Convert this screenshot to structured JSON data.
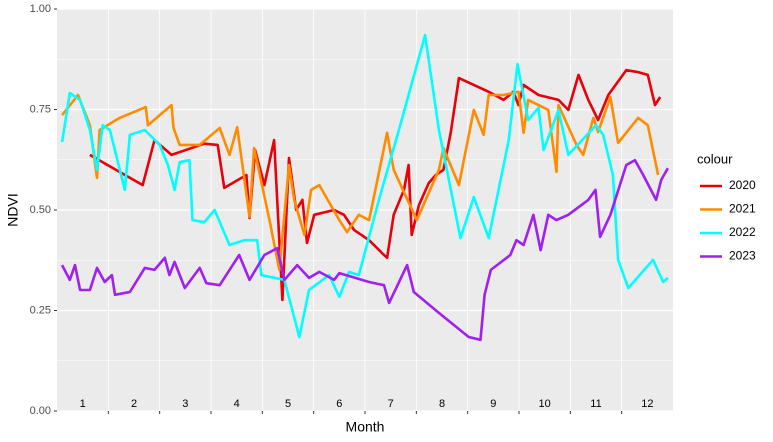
{
  "chart_data": {
    "type": "line",
    "x_label": "Month",
    "y_label": "NDVI",
    "xlim": [
      0,
      12
    ],
    "xticks": [
      1,
      2,
      3,
      4,
      5,
      6,
      7,
      8,
      9,
      10,
      11
    ],
    "ylim": [
      0,
      1
    ],
    "yticks": [
      {
        "value": 0,
        "label": "0.00"
      },
      {
        "value": 0.25,
        "label": "0.25"
      },
      {
        "value": 0.5,
        "label": "0.50"
      },
      {
        "value": 0.75,
        "label": "0.75"
      },
      {
        "value": 1,
        "label": "1.00"
      }
    ],
    "grid": true,
    "annotations": [
      {
        "x": 0.5,
        "text": "1"
      },
      {
        "x": 1.5,
        "text": "2"
      },
      {
        "x": 2.5,
        "text": "3"
      },
      {
        "x": 3.5,
        "text": "4"
      },
      {
        "x": 4.5,
        "text": "5"
      },
      {
        "x": 5.5,
        "text": "6"
      },
      {
        "x": 6.5,
        "text": "7"
      },
      {
        "x": 7.5,
        "text": "8"
      },
      {
        "x": 8.5,
        "text": "9"
      },
      {
        "x": 9.5,
        "text": "10"
      },
      {
        "x": 10.5,
        "text": "11"
      },
      {
        "x": 11.5,
        "text": "12"
      }
    ],
    "legend_title": "colour",
    "legend_position": "right",
    "series": [
      {
        "name": "2020",
        "color": "#e8000b",
        "x": [
          0.64,
          1.67,
          1.9,
          2.23,
          2.87,
          3.13,
          3.26,
          3.69,
          3.75,
          3.86,
          4.04,
          4.23,
          4.39,
          4.52,
          4.66,
          4.78,
          4.87,
          5.01,
          5.4,
          5.59,
          5.79,
          6.08,
          6.37,
          6.43,
          6.56,
          6.76,
          6.85,
          6.91,
          7.05,
          7.24,
          7.38,
          7.53,
          7.67,
          7.83,
          8.41,
          8.7,
          8.89,
          8.99,
          9.09,
          9.38,
          9.77,
          9.96,
          10.16,
          10.35,
          10.54,
          10.74,
          11.09,
          11.32,
          11.51,
          11.65,
          11.75
        ],
        "values": [
          0.637,
          0.562,
          0.674,
          0.637,
          0.665,
          0.662,
          0.555,
          0.587,
          0.48,
          0.649,
          0.562,
          0.674,
          0.276,
          0.629,
          0.5,
          0.525,
          0.418,
          0.488,
          0.5,
          0.488,
          0.45,
          0.425,
          0.388,
          0.381,
          0.488,
          0.55,
          0.612,
          0.438,
          0.512,
          0.567,
          0.587,
          0.6,
          0.692,
          0.828,
          0.794,
          0.774,
          0.794,
          0.761,
          0.811,
          0.786,
          0.774,
          0.749,
          0.836,
          0.774,
          0.724,
          0.786,
          0.848,
          0.843,
          0.836,
          0.761,
          0.781
        ]
      },
      {
        "name": "2021",
        "color": "#ff8c00",
        "x": [
          0.1,
          0.41,
          0.64,
          0.78,
          0.83,
          1.22,
          1.73,
          1.77,
          2.23,
          2.27,
          2.39,
          2.78,
          3.17,
          3.36,
          3.51,
          3.75,
          3.84,
          4.14,
          4.33,
          4.52,
          4.62,
          4.82,
          4.95,
          5.11,
          5.5,
          5.65,
          5.88,
          6.08,
          6.43,
          6.56,
          7.01,
          7.44,
          7.53,
          7.83,
          8.12,
          8.31,
          8.41,
          8.7,
          8.99,
          9.09,
          9.18,
          9.57,
          9.73,
          9.77,
          10.12,
          10.25,
          10.45,
          10.54,
          10.78,
          10.93,
          11.32,
          11.51,
          11.71
        ],
        "values": [
          0.736,
          0.786,
          0.711,
          0.58,
          0.699,
          0.729,
          0.756,
          0.711,
          0.761,
          0.704,
          0.662,
          0.662,
          0.704,
          0.637,
          0.706,
          0.483,
          0.654,
          0.475,
          0.351,
          0.612,
          0.525,
          0.438,
          0.55,
          0.562,
          0.475,
          0.445,
          0.488,
          0.475,
          0.692,
          0.6,
          0.475,
          0.6,
          0.654,
          0.562,
          0.749,
          0.687,
          0.786,
          0.786,
          0.794,
          0.692,
          0.774,
          0.749,
          0.595,
          0.761,
          0.662,
          0.637,
          0.729,
          0.694,
          0.781,
          0.667,
          0.729,
          0.711,
          0.587
        ]
      },
      {
        "name": "2022",
        "color": "#00ffff",
        "x": [
          0.1,
          0.25,
          0.45,
          0.64,
          0.78,
          0.89,
          1.03,
          1.32,
          1.42,
          1.71,
          2.0,
          2.16,
          2.29,
          2.39,
          2.58,
          2.64,
          2.87,
          3.07,
          3.36,
          3.65,
          3.9,
          3.98,
          4.43,
          4.72,
          4.91,
          5.3,
          5.5,
          5.69,
          5.88,
          6.27,
          6.66,
          7.17,
          7.44,
          7.86,
          8.12,
          8.41,
          8.8,
          8.97,
          9.18,
          9.38,
          9.48,
          9.77,
          9.96,
          10.5,
          10.64,
          10.83,
          10.93,
          11.13,
          11.61,
          11.81,
          11.9
        ],
        "values": [
          0.669,
          0.791,
          0.774,
          0.699,
          0.6,
          0.711,
          0.699,
          0.55,
          0.687,
          0.699,
          0.662,
          0.612,
          0.55,
          0.619,
          0.624,
          0.475,
          0.47,
          0.5,
          0.413,
          0.425,
          0.425,
          0.338,
          0.326,
          0.184,
          0.301,
          0.338,
          0.284,
          0.346,
          0.338,
          0.525,
          0.699,
          0.935,
          0.699,
          0.43,
          0.532,
          0.43,
          0.674,
          0.863,
          0.724,
          0.754,
          0.649,
          0.749,
          0.637,
          0.711,
          0.687,
          0.587,
          0.376,
          0.306,
          0.376,
          0.321,
          0.331
        ]
      },
      {
        "name": "2023",
        "color": "#a020f0",
        "x": [
          0.1,
          0.25,
          0.35,
          0.45,
          0.64,
          0.78,
          0.93,
          1.07,
          1.13,
          1.42,
          1.71,
          1.9,
          2.1,
          2.19,
          2.29,
          2.49,
          2.78,
          2.91,
          3.17,
          3.55,
          3.75,
          4.04,
          4.29,
          4.43,
          4.68,
          4.91,
          5.11,
          5.4,
          5.5,
          6.08,
          6.37,
          6.47,
          6.82,
          6.95,
          7.44,
          8.02,
          8.25,
          8.33,
          8.45,
          8.83,
          8.95,
          9.09,
          9.28,
          9.42,
          9.57,
          9.73,
          9.96,
          10.35,
          10.49,
          10.58,
          10.78,
          11.09,
          11.26,
          11.42,
          11.67,
          11.77,
          11.9
        ],
        "values": [
          0.363,
          0.326,
          0.363,
          0.301,
          0.301,
          0.356,
          0.321,
          0.338,
          0.289,
          0.296,
          0.356,
          0.351,
          0.381,
          0.338,
          0.371,
          0.306,
          0.356,
          0.318,
          0.313,
          0.388,
          0.326,
          0.388,
          0.405,
          0.326,
          0.363,
          0.331,
          0.346,
          0.326,
          0.343,
          0.321,
          0.313,
          0.269,
          0.363,
          0.296,
          0.244,
          0.184,
          0.177,
          0.289,
          0.351,
          0.388,
          0.425,
          0.413,
          0.488,
          0.4,
          0.488,
          0.475,
          0.488,
          0.525,
          0.55,
          0.433,
          0.488,
          0.612,
          0.624,
          0.587,
          0.525,
          0.575,
          0.604
        ]
      }
    ]
  }
}
